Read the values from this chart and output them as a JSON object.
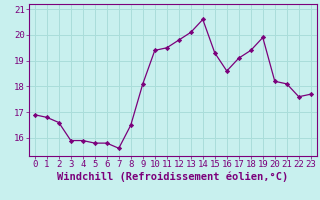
{
  "x": [
    0,
    1,
    2,
    3,
    4,
    5,
    6,
    7,
    8,
    9,
    10,
    11,
    12,
    13,
    14,
    15,
    16,
    17,
    18,
    19,
    20,
    21,
    22,
    23
  ],
  "y": [
    16.9,
    16.8,
    16.6,
    15.9,
    15.9,
    15.8,
    15.8,
    15.6,
    16.5,
    18.1,
    19.4,
    19.5,
    19.8,
    20.1,
    20.6,
    19.3,
    18.6,
    19.1,
    19.4,
    19.9,
    18.2,
    18.1,
    17.6,
    17.7
  ],
  "line_color": "#7b007b",
  "marker_color": "#7b007b",
  "bg_color": "#c8f0ee",
  "grid_color": "#aaddda",
  "xlabel": "Windchill (Refroidissement éolien,°C)",
  "xlabel_color": "#7b007b",
  "xlim": [
    -0.5,
    23.5
  ],
  "ylim": [
    15.3,
    21.2
  ],
  "yticks": [
    16,
    17,
    18,
    19,
    20,
    21
  ],
  "xticks": [
    0,
    1,
    2,
    3,
    4,
    5,
    6,
    7,
    8,
    9,
    10,
    11,
    12,
    13,
    14,
    15,
    16,
    17,
    18,
    19,
    20,
    21,
    22,
    23
  ],
  "tick_label_color": "#7b007b",
  "tick_label_size": 6.5,
  "xlabel_size": 7.5,
  "spine_color": "#7b007b"
}
